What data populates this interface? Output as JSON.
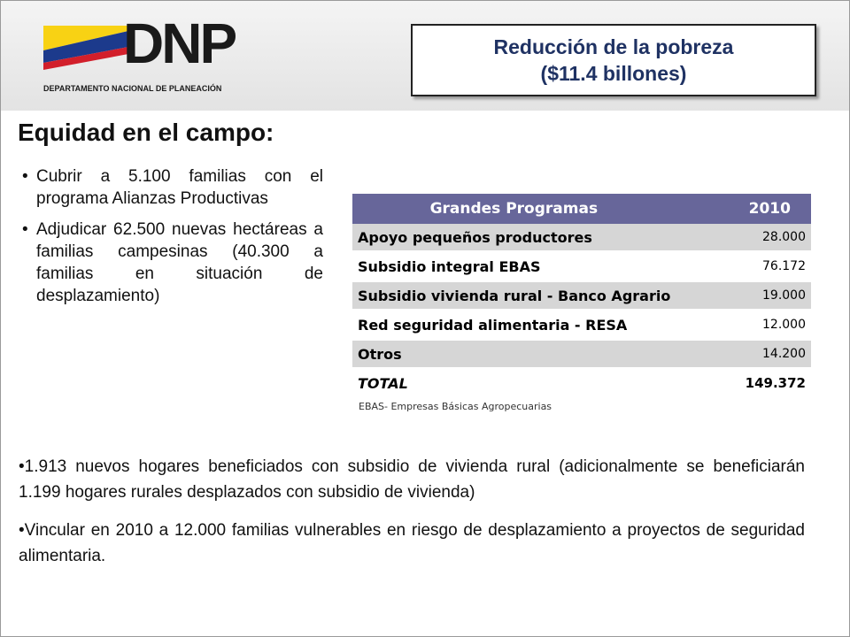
{
  "logo": {
    "name": "DNP",
    "subtitle": "DEPARTAMENTO NACIONAL DE PLANEACIÓN",
    "colors": {
      "yellow": "#f8d214",
      "blue": "#1c3a8c",
      "red": "#d21f2b"
    }
  },
  "title_box": {
    "line1": "Reducción de la pobreza",
    "line2": "($11.4 billones)"
  },
  "section_title": "Equidad en el campo:",
  "left_bullets": [
    {
      "bullet": "•",
      "text": "Cubrir a 5.100 familias con el programa Alianzas Productivas"
    },
    {
      "bullet": "•",
      "text": "Adjudicar 62.500 nuevas hectáreas a familias campesinas (40.300 a familias en situación de desplazamiento)"
    }
  ],
  "table": {
    "header": {
      "name": "Grandes Programas",
      "year": "2010"
    },
    "header_color": "#67669a",
    "rows": [
      {
        "name": "Apoyo pequeños productores",
        "value": "28.000"
      },
      {
        "name": "Subsidio integral EBAS",
        "value": "76.172"
      },
      {
        "name": "Subsidio vivienda rural - Banco Agrario",
        "value": "19.000"
      },
      {
        "name": "Red seguridad alimentaria - RESA",
        "value": "12.000"
      },
      {
        "name": "Otros",
        "value": "14.200"
      },
      {
        "name": "TOTAL",
        "value": "149.372"
      }
    ]
  },
  "note": "EBAS- Empresas Básicas Agropecuarias",
  "bottom_bullets": [
    "•1.913 nuevos hogares beneficiados con subsidio de vivienda rural (adicionalmente se beneficiarán 1.199 hogares rurales desplazados con subsidio de vivienda)",
    "•Vincular en 2010 a 12.000 familias vulnerables en riesgo de desplazamiento a proyectos de seguridad alimentaria."
  ]
}
